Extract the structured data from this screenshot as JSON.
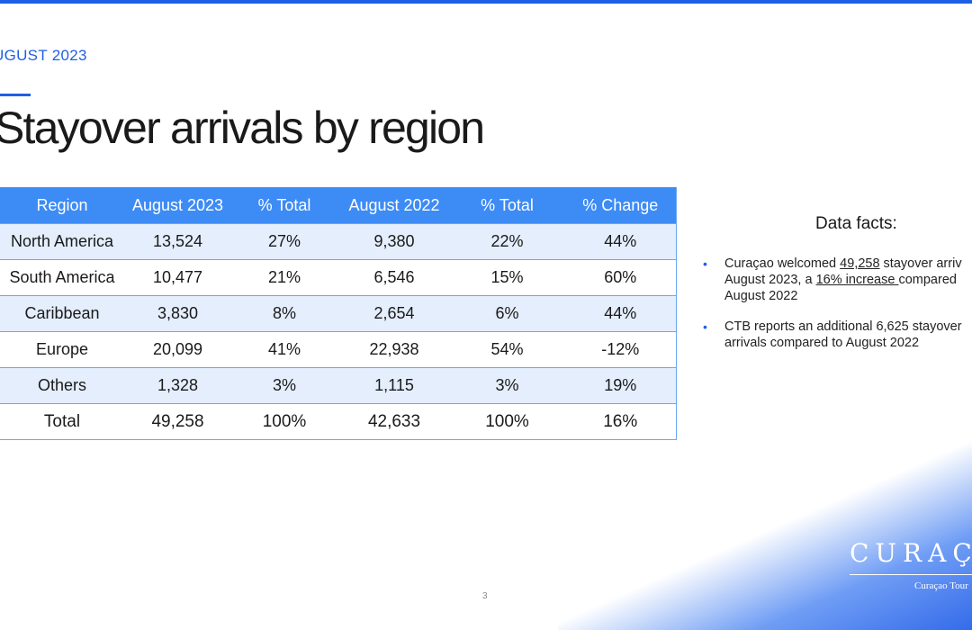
{
  "header": {
    "subtitle": "UGUST 2023",
    "title": "Stayover arrivals by region"
  },
  "table": {
    "columns": [
      "Region",
      "August 2023",
      "% Total",
      "August 2022",
      "% Total",
      "% Change"
    ],
    "rows": [
      [
        "North America",
        "13,524",
        "27%",
        "9,380",
        "22%",
        "44%"
      ],
      [
        "South America",
        "10,477",
        "21%",
        "6,546",
        "15%",
        "60%"
      ],
      [
        "Caribbean",
        "3,830",
        "8%",
        "2,654",
        "6%",
        "44%"
      ],
      [
        "Europe",
        "20,099",
        "41%",
        "22,938",
        "54%",
        "-12%"
      ],
      [
        "Others",
        "1,328",
        "3%",
        "1,115",
        "3%",
        "19%"
      ],
      [
        "Total",
        "49,258",
        "100%",
        "42,633",
        "100%",
        "16%"
      ]
    ]
  },
  "facts": {
    "title": "Data facts:",
    "items": [
      {
        "line1_a": "Curaçao welcomed ",
        "line1_link": "49,258",
        "line1_b": " stayover arriv",
        "line2_a": "August 2023, a ",
        "line2_link": "16% increase ",
        "line2_b": "compared",
        "line3": "August 2022"
      },
      {
        "line1": "CTB reports an additional 6,625 stayover",
        "line2": "arrivals compared to August 2022"
      }
    ]
  },
  "footer": {
    "page_number": "3",
    "logo_text": "CURAÇA",
    "logo_subtitle": "Curaçao Tour"
  },
  "colors": {
    "accent": "#1f5fe6",
    "table_header": "#3d8bf5",
    "table_stripe": "#e4eefc"
  }
}
